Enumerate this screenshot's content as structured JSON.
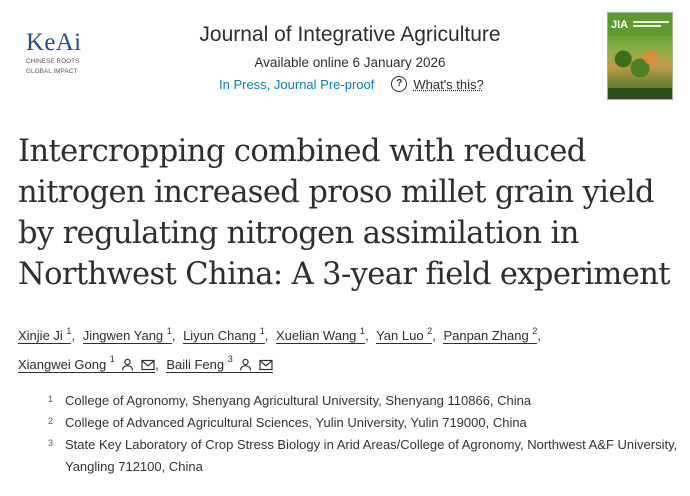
{
  "publisher": {
    "logo_word": "KeAi",
    "tagline_line1": "CHINESE ROOTS",
    "tagline_line2": "GLOBAL IMPACT"
  },
  "journal": {
    "title": "Journal of Integrative Agriculture",
    "available_online": "Available online 6 January 2026",
    "status_link": "In Press, Journal Pre-proof",
    "help_link": "What's this?",
    "cover_abbrev": "JIA"
  },
  "article": {
    "title_lines": [
      "Intercropping combined with reduced",
      "nitrogen increased proso millet grain yield",
      "by regulating nitrogen assimilation in",
      "Northwest China: A 3-year field experiment"
    ]
  },
  "authors": [
    {
      "name": "Xinjie Ji",
      "sup": "1"
    },
    {
      "name": "Jingwen Yang",
      "sup": "1"
    },
    {
      "name": "Liyun Chang",
      "sup": "1"
    },
    {
      "name": "Xuelian Wang",
      "sup": "1"
    },
    {
      "name": "Yan Luo",
      "sup": "2"
    },
    {
      "name": "Panpan Zhang",
      "sup": "2"
    },
    {
      "name": "Xiangwei Gong",
      "sup": "1"
    },
    {
      "name": "Baili Feng",
      "sup": "3"
    }
  ],
  "affiliations": [
    {
      "num": "1",
      "text": "College of Agronomy, Shenyang Agricultural University, Shenyang 110866, China"
    },
    {
      "num": "2",
      "text": "College of Advanced Agricultural Sciences, Yulin University, Yulin 719000, China"
    },
    {
      "num": "3",
      "text": "State Key Laboratory of Crop Stress Biology in Arid Areas/College of Agronomy, Northwest A&F University, Yangling 712100, China"
    }
  ]
}
